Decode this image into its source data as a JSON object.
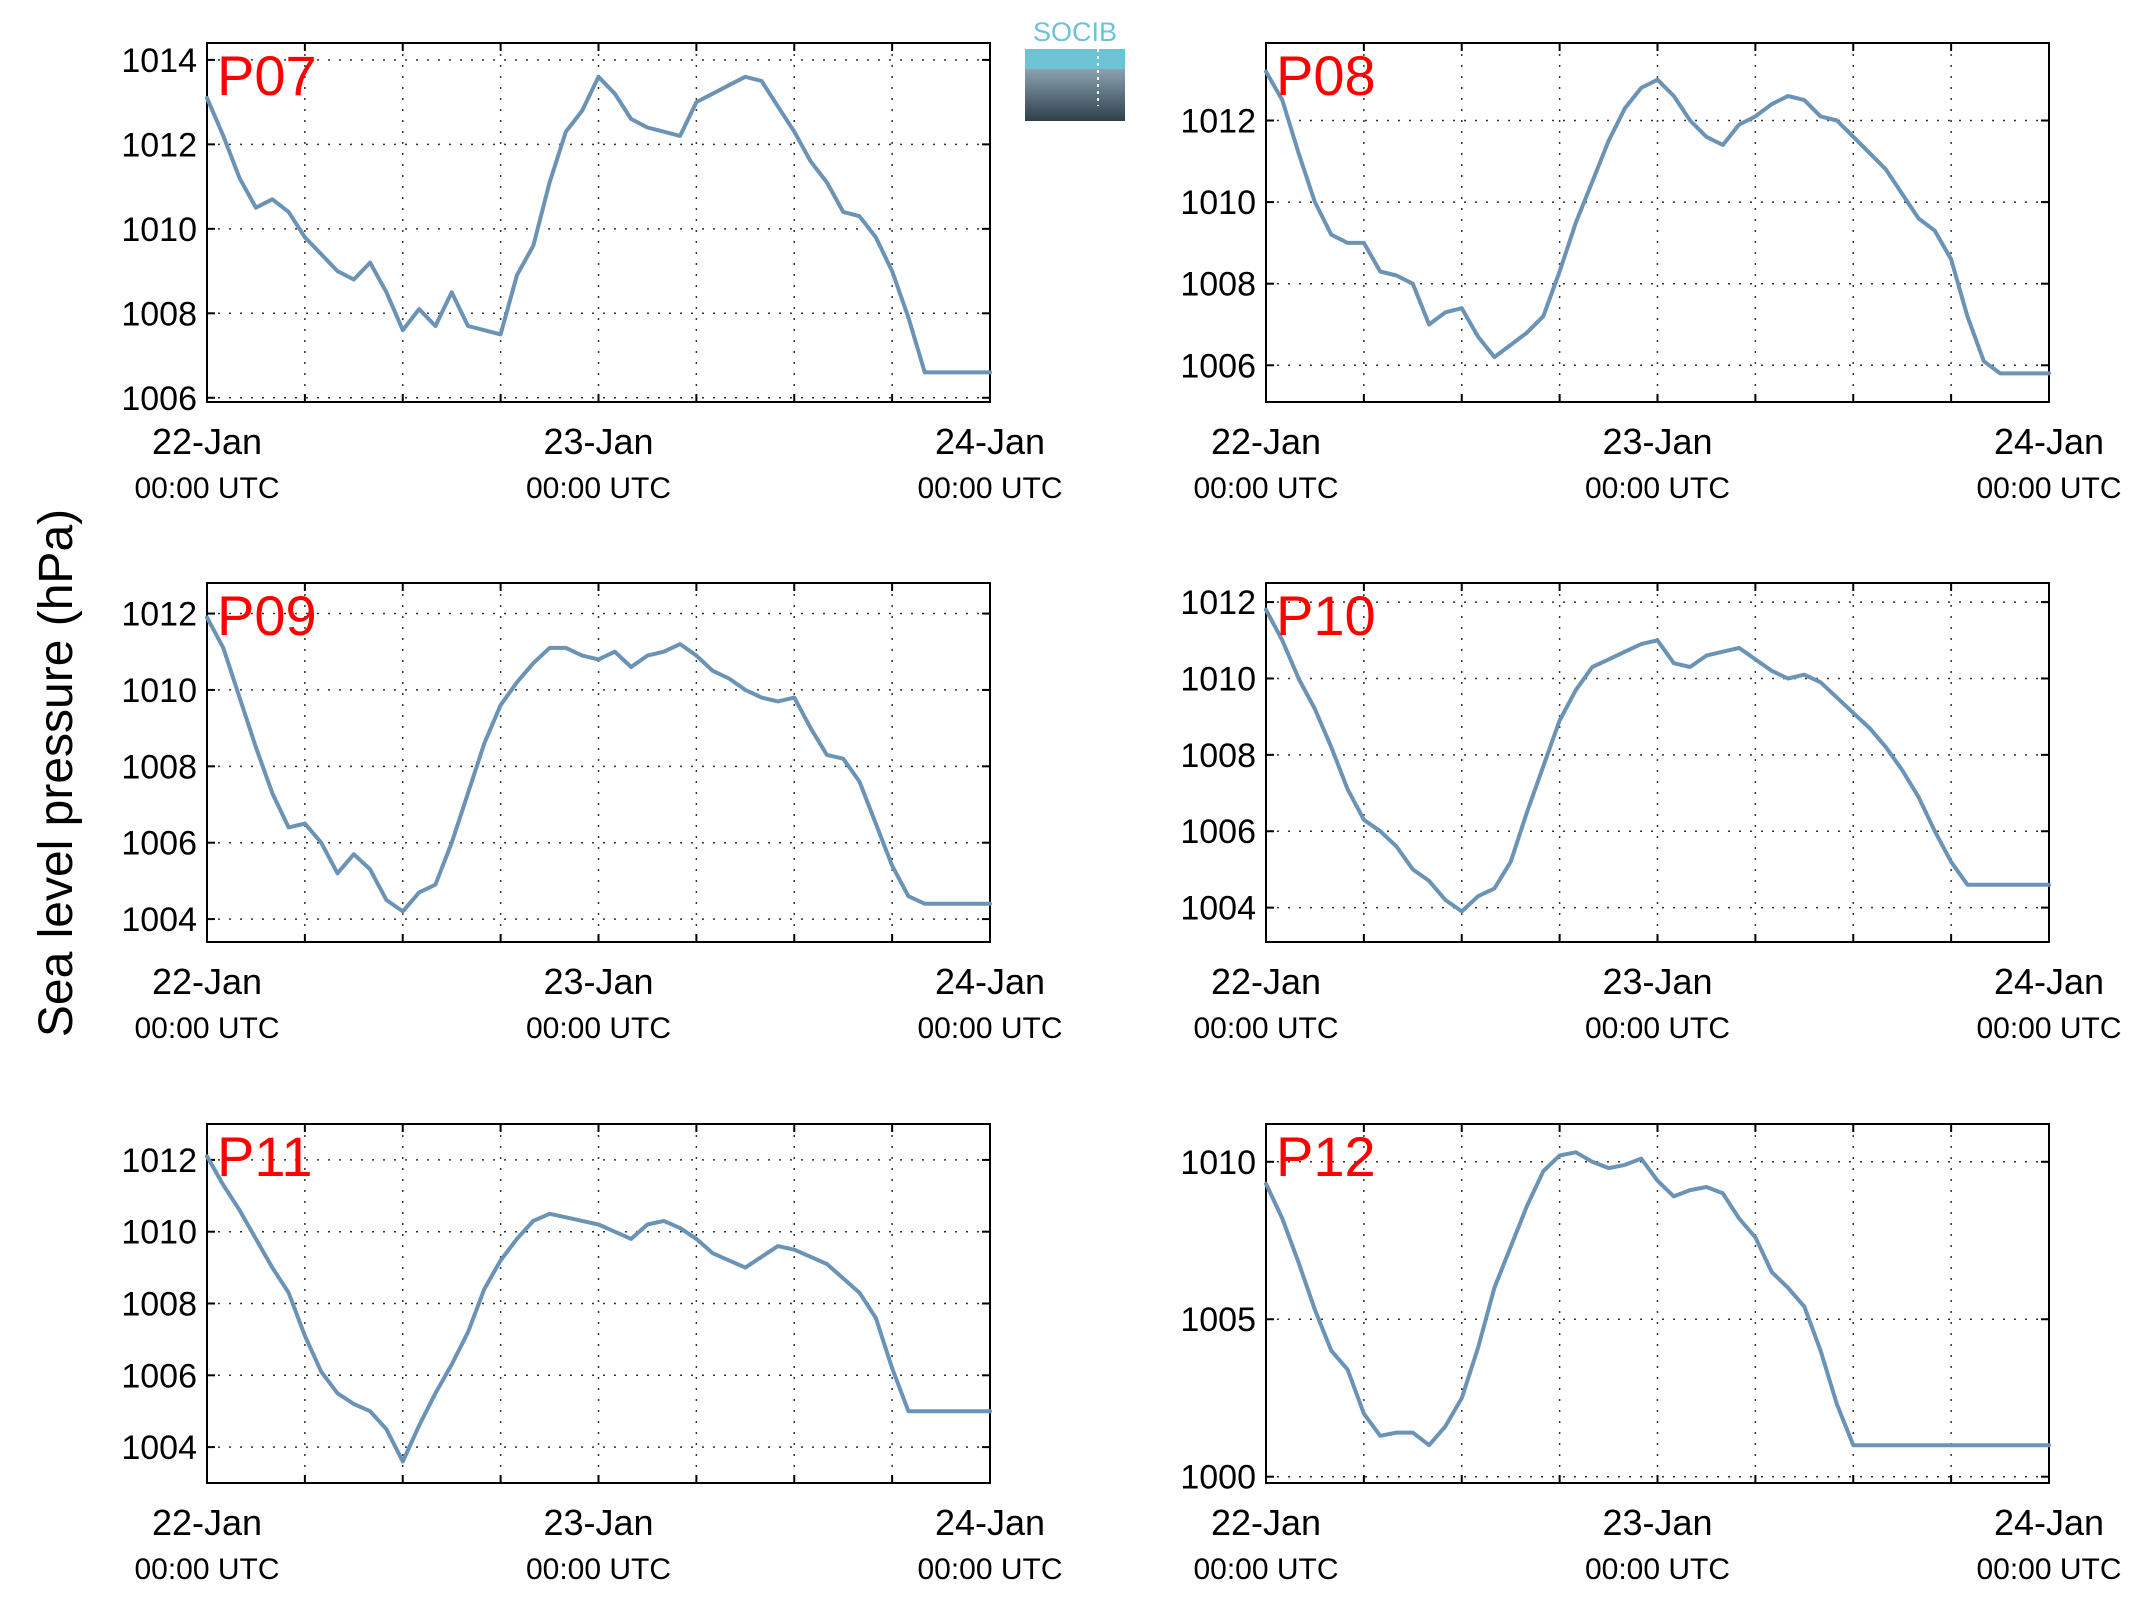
{
  "figure": {
    "ylabel": "Sea level pressure (hPa)",
    "logo_text": "SOCIB"
  },
  "colors": {
    "line": "#6a93b6",
    "station_label": "#ff0000",
    "axis": "#000000",
    "logo_top": "#6cc3d5",
    "logo_bottom": "#2e3f4b"
  },
  "chart_data": [
    {
      "type": "line",
      "title": "P07",
      "x_ticks": [
        {
          "date": "22-Jan",
          "time": "00:00 UTC"
        },
        {
          "date": "23-Jan",
          "time": "00:00 UTC"
        },
        {
          "date": "24-Jan",
          "time": "00:00 UTC"
        }
      ],
      "x_hours": [
        0,
        1,
        2,
        3,
        4,
        5,
        6,
        7,
        8,
        9,
        10,
        11,
        12,
        13,
        14,
        15,
        16,
        17,
        18,
        19,
        20,
        21,
        22,
        23,
        24,
        25,
        26,
        27,
        28,
        29,
        30,
        31,
        32,
        33,
        34,
        35,
        36,
        37,
        38,
        39,
        40,
        41,
        42,
        43,
        44,
        45,
        46,
        47,
        48
      ],
      "ylim": [
        1005.9,
        1014.4
      ],
      "yticks": [
        1006,
        1008,
        1010,
        1012,
        1014
      ],
      "grid": true,
      "values": [
        1013.1,
        1012.2,
        1011.2,
        1010.5,
        1010.7,
        1010.4,
        1009.8,
        1009.4,
        1009.0,
        1008.8,
        1009.2,
        1008.5,
        1007.6,
        1008.1,
        1007.7,
        1008.5,
        1007.7,
        1007.6,
        1007.5,
        1008.9,
        1009.6,
        1011.1,
        1012.3,
        1012.8,
        1013.6,
        1013.2,
        1012.6,
        1012.4,
        1012.3,
        1012.2,
        1013.0,
        1013.2,
        1013.4,
        1013.6,
        1013.5,
        1012.9,
        1012.3,
        1011.6,
        1011.1,
        1010.4,
        1010.3,
        1009.8,
        1009.0,
        1007.9,
        1006.6,
        1006.6,
        1006.6,
        1006.6,
        1006.6
      ]
    },
    {
      "type": "line",
      "title": "P08",
      "x_ticks": [
        {
          "date": "22-Jan",
          "time": "00:00 UTC"
        },
        {
          "date": "23-Jan",
          "time": "00:00 UTC"
        },
        {
          "date": "24-Jan",
          "time": "00:00 UTC"
        }
      ],
      "x_hours": [
        0,
        1,
        2,
        3,
        4,
        5,
        6,
        7,
        8,
        9,
        10,
        11,
        12,
        13,
        14,
        15,
        16,
        17,
        18,
        19,
        20,
        21,
        22,
        23,
        24,
        25,
        26,
        27,
        28,
        29,
        30,
        31,
        32,
        33,
        34,
        35,
        36,
        37,
        38,
        39,
        40,
        41,
        42,
        43,
        44,
        45,
        46,
        47,
        48
      ],
      "ylim": [
        1005.1,
        1013.9
      ],
      "yticks": [
        1006,
        1008,
        1010,
        1012
      ],
      "grid": true,
      "values": [
        1013.2,
        1012.5,
        1011.2,
        1010.0,
        1009.2,
        1009.0,
        1009.0,
        1008.3,
        1008.2,
        1008.0,
        1007.0,
        1007.3,
        1007.4,
        1006.7,
        1006.2,
        1006.5,
        1006.8,
        1007.2,
        1008.3,
        1009.5,
        1010.5,
        1011.5,
        1012.3,
        1012.8,
        1013.0,
        1012.6,
        1012.0,
        1011.6,
        1011.4,
        1011.9,
        1012.1,
        1012.4,
        1012.6,
        1012.5,
        1012.1,
        1012.0,
        1011.6,
        1011.2,
        1010.8,
        1010.2,
        1009.6,
        1009.3,
        1008.6,
        1007.2,
        1006.1,
        1005.8,
        1005.8,
        1005.8,
        1005.8
      ]
    },
    {
      "type": "line",
      "title": "P09",
      "x_ticks": [
        {
          "date": "22-Jan",
          "time": "00:00 UTC"
        },
        {
          "date": "23-Jan",
          "time": "00:00 UTC"
        },
        {
          "date": "24-Jan",
          "time": "00:00 UTC"
        }
      ],
      "x_hours": [
        0,
        1,
        2,
        3,
        4,
        5,
        6,
        7,
        8,
        9,
        10,
        11,
        12,
        13,
        14,
        15,
        16,
        17,
        18,
        19,
        20,
        21,
        22,
        23,
        24,
        25,
        26,
        27,
        28,
        29,
        30,
        31,
        32,
        33,
        34,
        35,
        36,
        37,
        38,
        39,
        40,
        41,
        42,
        43,
        44,
        45,
        46,
        47,
        48
      ],
      "ylim": [
        1003.4,
        1012.8
      ],
      "yticks": [
        1004,
        1006,
        1008,
        1010,
        1012
      ],
      "grid": true,
      "values": [
        1011.9,
        1011.1,
        1009.8,
        1008.5,
        1007.3,
        1006.4,
        1006.5,
        1006.0,
        1005.2,
        1005.7,
        1005.3,
        1004.5,
        1004.2,
        1004.7,
        1004.9,
        1006.0,
        1007.3,
        1008.6,
        1009.6,
        1010.2,
        1010.7,
        1011.1,
        1011.1,
        1010.9,
        1010.8,
        1011.0,
        1010.6,
        1010.9,
        1011.0,
        1011.2,
        1010.9,
        1010.5,
        1010.3,
        1010.0,
        1009.8,
        1009.7,
        1009.8,
        1009.0,
        1008.3,
        1008.2,
        1007.6,
        1006.5,
        1005.4,
        1004.6,
        1004.4,
        1004.4,
        1004.4,
        1004.4,
        1004.4
      ]
    },
    {
      "type": "line",
      "title": "P10",
      "x_ticks": [
        {
          "date": "22-Jan",
          "time": "00:00 UTC"
        },
        {
          "date": "23-Jan",
          "time": "00:00 UTC"
        },
        {
          "date": "24-Jan",
          "time": "00:00 UTC"
        }
      ],
      "x_hours": [
        0,
        1,
        2,
        3,
        4,
        5,
        6,
        7,
        8,
        9,
        10,
        11,
        12,
        13,
        14,
        15,
        16,
        17,
        18,
        19,
        20,
        21,
        22,
        23,
        24,
        25,
        26,
        27,
        28,
        29,
        30,
        31,
        32,
        33,
        34,
        35,
        36,
        37,
        38,
        39,
        40,
        41,
        42,
        43,
        44,
        45,
        46,
        47,
        48
      ],
      "ylim": [
        1003.1,
        1012.5
      ],
      "yticks": [
        1004,
        1006,
        1008,
        1010,
        1012
      ],
      "grid": true,
      "values": [
        1011.8,
        1011.0,
        1010.0,
        1009.2,
        1008.2,
        1007.1,
        1006.3,
        1006.0,
        1005.6,
        1005.0,
        1004.7,
        1004.2,
        1003.9,
        1004.3,
        1004.5,
        1005.2,
        1006.5,
        1007.7,
        1008.9,
        1009.7,
        1010.3,
        1010.5,
        1010.7,
        1010.9,
        1011.0,
        1010.4,
        1010.3,
        1010.6,
        1010.7,
        1010.8,
        1010.5,
        1010.2,
        1010.0,
        1010.1,
        1009.9,
        1009.5,
        1009.1,
        1008.7,
        1008.2,
        1007.6,
        1006.9,
        1006.0,
        1005.2,
        1004.6,
        1004.6,
        1004.6,
        1004.6,
        1004.6,
        1004.6
      ]
    },
    {
      "type": "line",
      "title": "P11",
      "x_ticks": [
        {
          "date": "22-Jan",
          "time": "00:00 UTC"
        },
        {
          "date": "23-Jan",
          "time": "00:00 UTC"
        },
        {
          "date": "24-Jan",
          "time": "00:00 UTC"
        }
      ],
      "x_hours": [
        0,
        1,
        2,
        3,
        4,
        5,
        6,
        7,
        8,
        9,
        10,
        11,
        12,
        13,
        14,
        15,
        16,
        17,
        18,
        19,
        20,
        21,
        22,
        23,
        24,
        25,
        26,
        27,
        28,
        29,
        30,
        31,
        32,
        33,
        34,
        35,
        36,
        37,
        38,
        39,
        40,
        41,
        42,
        43,
        44,
        45,
        46,
        47,
        48
      ],
      "ylim": [
        1003.0,
        1013.0
      ],
      "yticks": [
        1004,
        1006,
        1008,
        1010,
        1012
      ],
      "grid": true,
      "values": [
        1012.1,
        1011.3,
        1010.6,
        1009.8,
        1009.0,
        1008.3,
        1007.1,
        1006.1,
        1005.5,
        1005.2,
        1005.0,
        1004.5,
        1003.6,
        1004.6,
        1005.5,
        1006.3,
        1007.2,
        1008.4,
        1009.2,
        1009.8,
        1010.3,
        1010.5,
        1010.4,
        1010.3,
        1010.2,
        1010.0,
        1009.8,
        1010.2,
        1010.3,
        1010.1,
        1009.8,
        1009.4,
        1009.2,
        1009.0,
        1009.3,
        1009.6,
        1009.5,
        1009.3,
        1009.1,
        1008.7,
        1008.3,
        1007.6,
        1006.2,
        1005.0,
        1005.0,
        1005.0,
        1005.0,
        1005.0,
        1005.0
      ]
    },
    {
      "type": "line",
      "title": "P12",
      "x_ticks": [
        {
          "date": "22-Jan",
          "time": "00:00 UTC"
        },
        {
          "date": "23-Jan",
          "time": "00:00 UTC"
        },
        {
          "date": "24-Jan",
          "time": "00:00 UTC"
        }
      ],
      "x_hours": [
        0,
        1,
        2,
        3,
        4,
        5,
        6,
        7,
        8,
        9,
        10,
        11,
        12,
        13,
        14,
        15,
        16,
        17,
        18,
        19,
        20,
        21,
        22,
        23,
        24,
        25,
        26,
        27,
        28,
        29,
        30,
        31,
        32,
        33,
        34,
        35,
        36,
        37,
        38,
        39,
        40,
        41,
        42,
        43,
        44,
        45,
        46,
        47,
        48
      ],
      "ylim": [
        999.8,
        1011.2
      ],
      "yticks": [
        1000,
        1005,
        1010
      ],
      "grid": true,
      "values": [
        1009.3,
        1008.2,
        1006.8,
        1005.3,
        1004.0,
        1003.4,
        1002.0,
        1001.3,
        1001.4,
        1001.4,
        1001.0,
        1001.6,
        1002.5,
        1004.1,
        1006.0,
        1007.3,
        1008.6,
        1009.7,
        1010.2,
        1010.3,
        1010.0,
        1009.8,
        1009.9,
        1010.1,
        1009.4,
        1008.9,
        1009.1,
        1009.2,
        1009.0,
        1008.2,
        1007.6,
        1006.5,
        1006.0,
        1005.4,
        1004.0,
        1002.3,
        1001.0,
        1001.0,
        1001.0,
        1001.0,
        1001.0,
        1001.0,
        1001.0,
        1001.0,
        1001.0,
        1001.0,
        1001.0,
        1001.0,
        1001.0
      ]
    }
  ]
}
